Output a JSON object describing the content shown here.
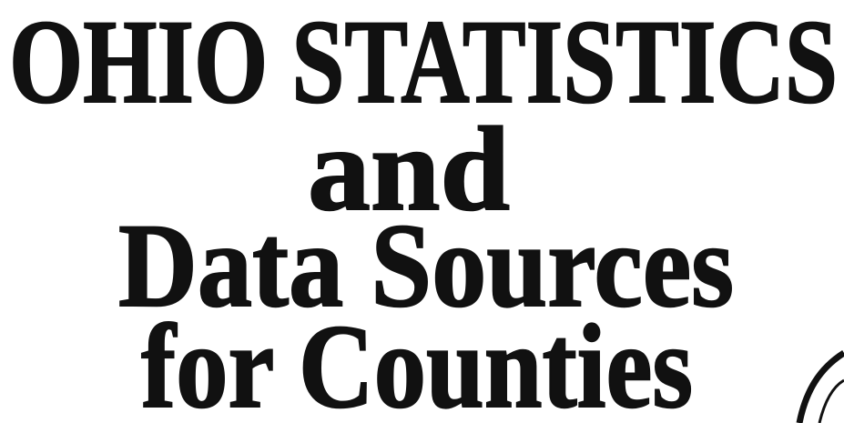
{
  "cover": {
    "title_lines": [
      "OHIO STATISTICS",
      "and",
      "Data Sources",
      "for Counties"
    ]
  }
}
